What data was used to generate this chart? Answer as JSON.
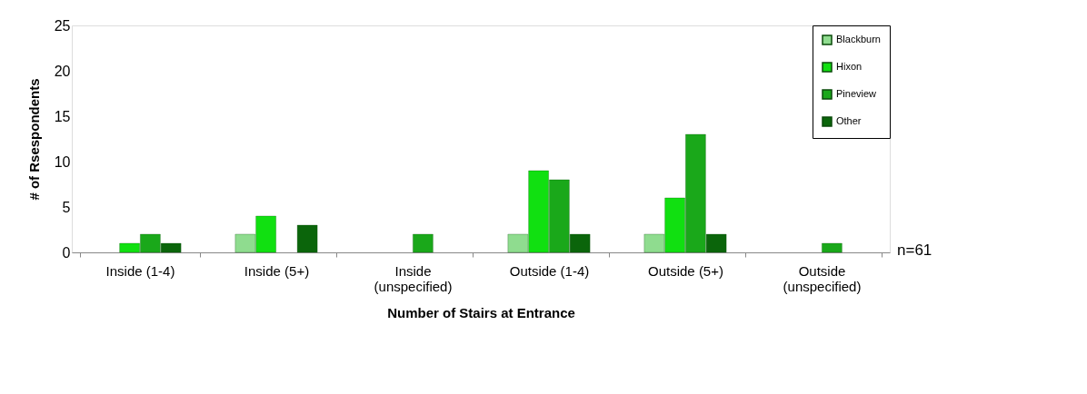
{
  "chart_data": {
    "type": "bar",
    "xlabel": "Number of Stairs at Entrance",
    "ylabel": "# of Rsespondents",
    "categories": [
      "Inside (1-4)",
      "Inside (5+)",
      "Inside (unspecified)",
      "Outside (1-4)",
      "Outside (5+)",
      "Outside (unspecified)"
    ],
    "series": [
      {
        "name": "Blackburn",
        "color": "#8fdc8f",
        "values": [
          null,
          2,
          null,
          2,
          2,
          null
        ]
      },
      {
        "name": "Hixon",
        "color": "#11e011",
        "values": [
          1,
          4,
          null,
          9,
          6,
          null
        ]
      },
      {
        "name": "Pineview",
        "color": "#1aa81a",
        "values": [
          2,
          null,
          2,
          8,
          13,
          1
        ]
      },
      {
        "name": "Other",
        "color": "#0b650b",
        "values": [
          1,
          3,
          null,
          2,
          2,
          null
        ]
      }
    ],
    "ylim": [
      0,
      25
    ],
    "yticks": [
      0,
      5,
      10,
      15,
      20,
      25
    ],
    "grid": false,
    "legend": "top right",
    "annotations": [
      "n=61"
    ]
  }
}
